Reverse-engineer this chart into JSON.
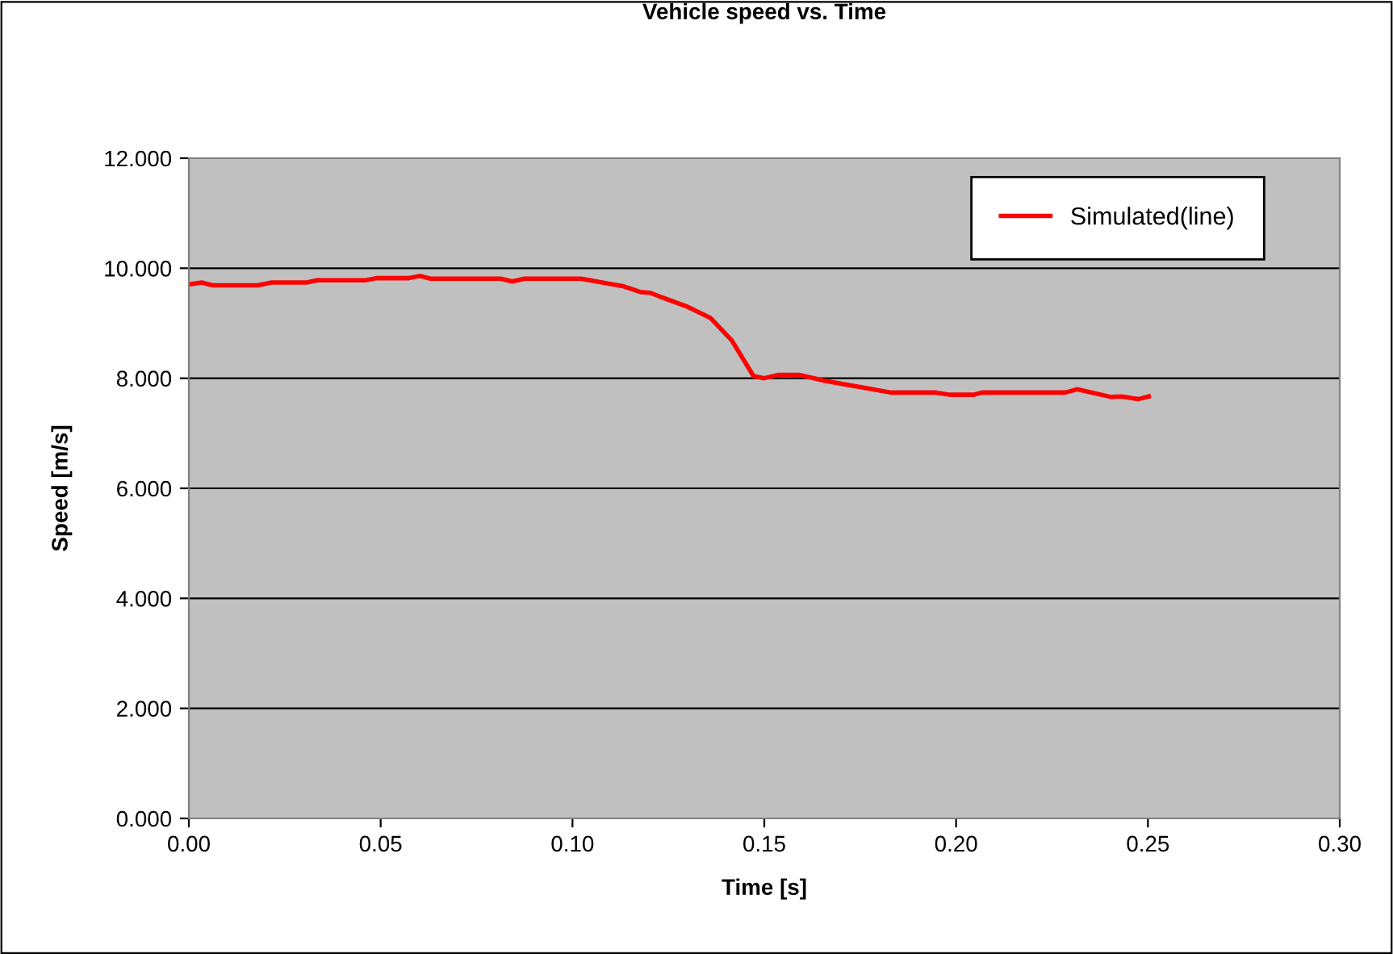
{
  "chart_data": {
    "type": "line",
    "title": "Vehicle speed vs. Time",
    "xlabel": "Time [s]",
    "ylabel": "Speed [m/s]",
    "x": [
      0.0004,
      0.0034,
      0.0062,
      0.018,
      0.0216,
      0.0307,
      0.0335,
      0.0461,
      0.0489,
      0.0573,
      0.0602,
      0.063,
      0.0812,
      0.0843,
      0.0875,
      0.1022,
      0.1134,
      0.1176,
      0.1204,
      0.1233,
      0.1296,
      0.1359,
      0.1415,
      0.1472,
      0.15,
      0.1535,
      0.1591,
      0.1654,
      0.1767,
      0.183,
      0.1948,
      0.1983,
      0.2046,
      0.2067,
      0.2285,
      0.2315,
      0.2404,
      0.2432,
      0.2474,
      0.2502
    ],
    "series": [
      {
        "name": "Simulated(line)",
        "color": "#ff0000",
        "values": [
          9.71,
          9.74,
          9.69,
          9.69,
          9.74,
          9.74,
          9.78,
          9.78,
          9.82,
          9.82,
          9.86,
          9.81,
          9.81,
          9.76,
          9.81,
          9.81,
          9.67,
          9.57,
          9.55,
          9.47,
          9.31,
          9.1,
          8.69,
          8.04,
          8.0,
          8.06,
          8.06,
          7.96,
          7.82,
          7.74,
          7.74,
          7.7,
          7.7,
          7.74,
          7.74,
          7.8,
          7.66,
          7.67,
          7.62,
          7.67
        ]
      }
    ],
    "xlim": [
      0,
      0.3
    ],
    "xticks": [
      {
        "value": 0,
        "label": "0.00"
      },
      {
        "value": 0.05,
        "label": "0.05"
      },
      {
        "value": 0.1,
        "label": "0.10"
      },
      {
        "value": 0.15,
        "label": "0.15"
      },
      {
        "value": 0.2,
        "label": "0.20"
      },
      {
        "value": 0.25,
        "label": "0.25"
      },
      {
        "value": 0.3,
        "label": "0.30"
      }
    ],
    "ylim": [
      0,
      12
    ],
    "yticks": [
      {
        "value": 0,
        "label": "0.000"
      },
      {
        "value": 2,
        "label": "2.000"
      },
      {
        "value": 4,
        "label": "4.000"
      },
      {
        "value": 6,
        "label": "6.000"
      },
      {
        "value": 8,
        "label": "8.000"
      },
      {
        "value": 10,
        "label": "10.000"
      },
      {
        "value": 12,
        "label": "12.000"
      }
    ],
    "grid": "y",
    "legend": "top right",
    "marker": "none",
    "line_style": "solid"
  }
}
